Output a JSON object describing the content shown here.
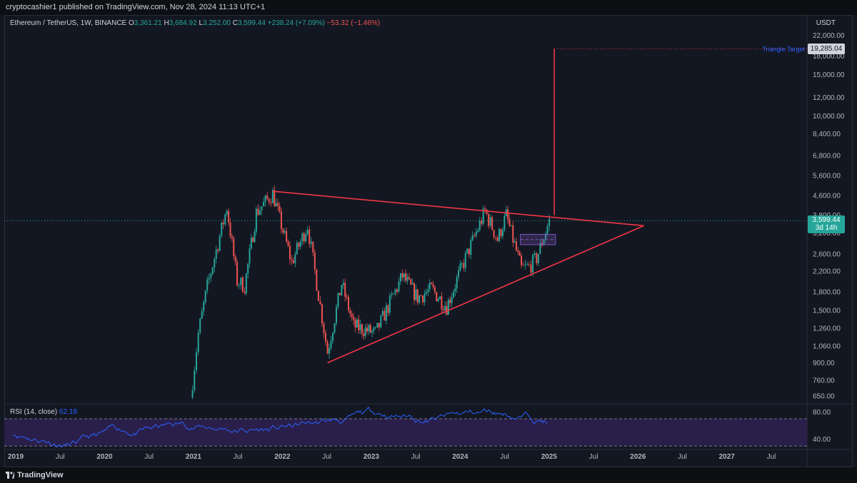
{
  "header": {
    "publisher_line": "cryptocashier1 published on TradingView.com, Nov 28, 2024 11:13 UTC+1"
  },
  "legend": {
    "symbol": "Ethereum / TetherUS, 1W, BINANCE",
    "open_label": "O",
    "open": "3,361.21",
    "high_label": "H",
    "high": "3,684.92",
    "low_label": "L",
    "low": "3,252.00",
    "close_label": "C",
    "close": "3,599.44",
    "change": "+238.24 (+7.09%)",
    "change2": "−53.32 (−1.46%)"
  },
  "rsi": {
    "label": "RSI (14, close)",
    "value": "62.18",
    "upper_band": 70,
    "lower_band": 30
  },
  "price_axis": {
    "currency": "USDT",
    "ticks": [
      "22,000.00",
      "18,000.00",
      "15,000.00",
      "12,000.00",
      "10,000.00",
      "8,400.00",
      "6,800.00",
      "5,600.00",
      "4,600.00",
      "3,800.00",
      "3,200.00",
      "2,600.00",
      "2,200.00",
      "1,800.00",
      "1,500.00",
      "1,260.00",
      "1,060.00",
      "900.00",
      "760.00",
      "650.00"
    ],
    "current_price": "3,599.44",
    "countdown": "3d 14h",
    "target_price": "19,285.04",
    "target_label": "Triangle Target"
  },
  "rsi_axis": {
    "ticks": [
      "80.00",
      "40.00"
    ]
  },
  "time_axis": {
    "labels": [
      "2019",
      "Jul",
      "2020",
      "Jul",
      "2021",
      "Jul",
      "2022",
      "Jul",
      "2023",
      "Jul",
      "2024",
      "Jul",
      "2025",
      "Jul",
      "2026",
      "Jul",
      "2027",
      "Jul"
    ]
  },
  "footer": {
    "brand": "TradingView"
  },
  "colors": {
    "background": "#131722",
    "up": "#26a69a",
    "down": "#ef5350",
    "trendline": "#f23645",
    "rsi_line": "#2962ff",
    "rsi_band_fill": "#2a1e4a",
    "box": "#7e57c2"
  },
  "chart_data": {
    "type": "candlestick",
    "title": "Ethereum / TetherUS, 1W, BINANCE",
    "y_scale": "log",
    "ylim": [
      620,
      23500
    ],
    "xlim": [
      "2019-01",
      "2027-12"
    ],
    "anchors": [
      {
        "date": "2020-12-15",
        "price": 640
      },
      {
        "date": "2021-01-15",
        "price": 1200
      },
      {
        "date": "2021-02-20",
        "price": 1900
      },
      {
        "date": "2021-05-10",
        "price": 4100
      },
      {
        "date": "2021-06-20",
        "price": 2000
      },
      {
        "date": "2021-07-20",
        "price": 1900
      },
      {
        "date": "2021-09-05",
        "price": 3900
      },
      {
        "date": "2021-11-10",
        "price": 4700
      },
      {
        "date": "2022-01-25",
        "price": 2400
      },
      {
        "date": "2022-03-30",
        "price": 3450
      },
      {
        "date": "2022-06-18",
        "price": 1000
      },
      {
        "date": "2022-08-14",
        "price": 1950
      },
      {
        "date": "2022-10-01",
        "price": 1290
      },
      {
        "date": "2022-12-28",
        "price": 1200
      },
      {
        "date": "2023-04-15",
        "price": 2100
      },
      {
        "date": "2023-06-15",
        "price": 1700
      },
      {
        "date": "2023-08-10",
        "price": 1850
      },
      {
        "date": "2023-10-10",
        "price": 1560
      },
      {
        "date": "2023-12-10",
        "price": 2300
      },
      {
        "date": "2024-03-12",
        "price": 3950
      },
      {
        "date": "2024-05-01",
        "price": 3000
      },
      {
        "date": "2024-06-05",
        "price": 3800
      },
      {
        "date": "2024-08-05",
        "price": 2250
      },
      {
        "date": "2024-09-05",
        "price": 2300
      },
      {
        "date": "2024-10-05",
        "price": 2500
      },
      {
        "date": "2024-11-25",
        "price": 3600
      }
    ],
    "annotations": {
      "upper_trendline": [
        {
          "date": "2021-11-10",
          "price": 4800
        },
        {
          "date": "2025-12-10",
          "price": 3430
        }
      ],
      "lower_trendline": [
        {
          "date": "2022-06-18",
          "price": 900
        },
        {
          "date": "2025-12-10",
          "price": 3430
        }
      ],
      "target_vertical": [
        {
          "date": "2024-12-15",
          "price": 3800
        },
        {
          "date": "2024-12-15",
          "price": 19285.04
        }
      ],
      "target_level": 19285.04,
      "box": {
        "from": "2024-08-01",
        "to": "2024-12-20",
        "low": 2850,
        "high": 3150
      }
    }
  }
}
